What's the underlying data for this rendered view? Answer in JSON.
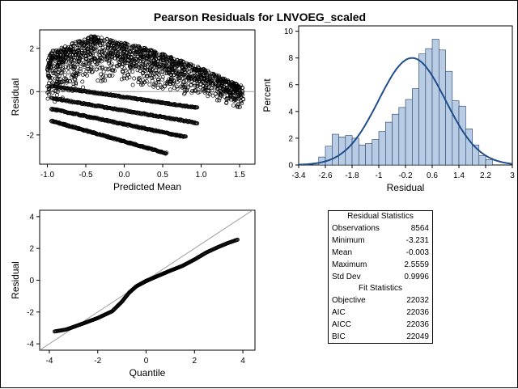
{
  "figure": {
    "title": "Pearson Residuals for LNVOEG_scaled"
  },
  "colors": {
    "frame": "#000000",
    "marker": "#000000",
    "refline": "#a0a0a0",
    "bar_fill": "#b8cce4",
    "bar_stroke": "#1f3864",
    "density": "#1f4e8c"
  },
  "chart_data": [
    {
      "id": "scatter",
      "type": "scatter",
      "title": "",
      "xlabel": "Predicted Mean",
      "ylabel": "Residual",
      "xlim": [
        -1.1,
        1.7
      ],
      "ylim": [
        -3.35,
        2.85
      ],
      "xticks": [
        -1.0,
        -0.5,
        0.0,
        0.5,
        1.0,
        1.5
      ],
      "xtick_labels": [
        "-1.0",
        "-0.5",
        "0.0",
        "0.5",
        "1.0",
        "1.5"
      ],
      "yticks": [
        -2,
        0,
        2
      ],
      "ytick_labels": [
        "-2",
        "0",
        "2"
      ],
      "reference_line_y": 0,
      "cloud": {
        "x_range": [
          -1.0,
          1.55
        ],
        "top": [
          [
            -1.0,
            1.8
          ],
          [
            -0.4,
            2.6
          ],
          [
            0.3,
            2.0
          ],
          [
            1.0,
            1.1
          ],
          [
            1.5,
            0.3
          ]
        ],
        "bottom_offset": 0.25
      },
      "bands": [
        {
          "x": [
            -0.95,
            0.95
          ],
          "y": [
            0.25,
            -0.75
          ]
        },
        {
          "x": [
            -0.95,
            0.95
          ],
          "y": [
            -0.3,
            -1.45
          ]
        },
        {
          "x": [
            -0.95,
            0.8
          ],
          "y": [
            -0.8,
            -2.1
          ]
        },
        {
          "x": [
            -0.95,
            0.55
          ],
          "y": [
            -1.35,
            -2.85
          ]
        }
      ]
    },
    {
      "id": "histogram",
      "type": "bar",
      "title": "",
      "xlabel": "Residual",
      "ylabel": "Percent",
      "xlim": [
        -3.4,
        3.0
      ],
      "ylim": [
        0,
        10.4
      ],
      "xticks": [
        -3.4,
        -2.6,
        -1.8,
        -1.0,
        -0.2,
        0.6,
        1.4,
        2.2,
        3.0
      ],
      "xtick_labels": [
        "-3.4",
        "-2.6",
        "-1.8",
        "-1",
        "-0.2",
        "0.6",
        "1.4",
        "2.2",
        "3"
      ],
      "yticks": [
        0,
        2,
        4,
        6,
        8,
        10
      ],
      "ytick_labels": [
        "0",
        "2",
        "4",
        "6",
        "8",
        "10"
      ],
      "bin_start": -2.8,
      "bin_width": 0.2,
      "values": [
        0.6,
        1.4,
        2.3,
        2.1,
        2.2,
        2.0,
        1.5,
        1.6,
        1.9,
        2.5,
        3.2,
        3.8,
        4.3,
        4.9,
        5.7,
        8.3,
        8.7,
        9.4,
        8.6,
        7.0,
        4.8,
        4.4,
        2.7,
        1.5,
        0.7,
        0.4
      ],
      "density": {
        "type": "normal",
        "mean": -0.003,
        "sd": 0.9996,
        "peak_percent": 8.0
      }
    },
    {
      "id": "qqplot",
      "type": "scatter",
      "title": "",
      "xlabel": "Quantile",
      "ylabel": "Residual",
      "xlim": [
        -4.4,
        4.5
      ],
      "ylim": [
        -4.4,
        4.4
      ],
      "xticks": [
        -4,
        -2,
        0,
        2,
        4
      ],
      "xtick_labels": [
        "-4",
        "-2",
        "0",
        "2",
        "4"
      ],
      "yticks": [
        -4,
        -2,
        0,
        2,
        4
      ],
      "ytick_labels": [
        "-4",
        "-2",
        "0",
        "2",
        "4"
      ],
      "reference_line": {
        "slope": 1,
        "intercept": 0
      },
      "curve": [
        [
          -3.8,
          -3.23
        ],
        [
          -3.3,
          -3.1
        ],
        [
          -2.6,
          -2.72
        ],
        [
          -2.0,
          -2.38
        ],
        [
          -1.4,
          -1.95
        ],
        [
          -1.0,
          -1.35
        ],
        [
          -0.7,
          -0.78
        ],
        [
          -0.4,
          -0.38
        ],
        [
          0.0,
          -0.05
        ],
        [
          0.5,
          0.28
        ],
        [
          1.0,
          0.6
        ],
        [
          1.5,
          0.9
        ],
        [
          2.0,
          1.3
        ],
        [
          2.5,
          1.75
        ],
        [
          3.0,
          2.1
        ],
        [
          3.4,
          2.35
        ],
        [
          3.8,
          2.56
        ]
      ]
    }
  ],
  "stats": {
    "residual_title": "Residual Statistics",
    "residual": [
      {
        "label": "Observations",
        "value": "8564"
      },
      {
        "label": "Minimum",
        "value": "-3.231"
      },
      {
        "label": "Mean",
        "value": "-0.003"
      },
      {
        "label": "Maximum",
        "value": "2.5559"
      },
      {
        "label": "Std Dev",
        "value": "0.9996"
      }
    ],
    "fit_title": "Fit Statistics",
    "fit": [
      {
        "label": "Objective",
        "value": "22032"
      },
      {
        "label": "AIC",
        "value": "22036"
      },
      {
        "label": "AICC",
        "value": "22036"
      },
      {
        "label": "BIC",
        "value": "22049"
      }
    ]
  }
}
